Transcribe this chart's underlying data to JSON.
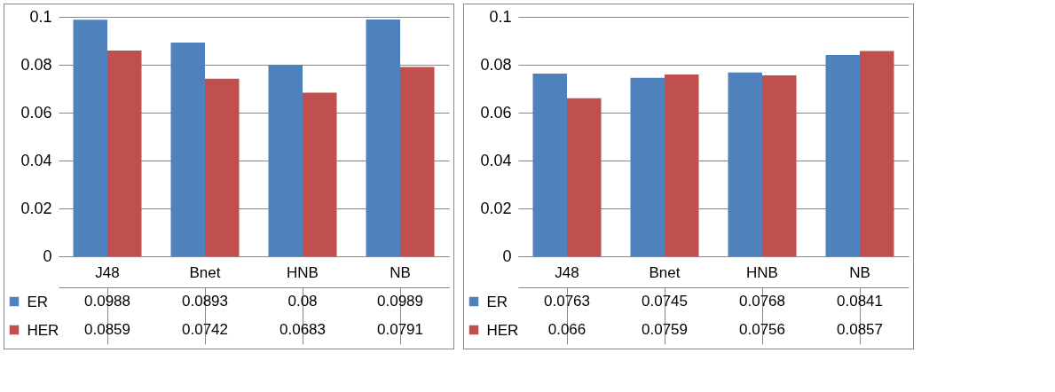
{
  "chart_data": [
    {
      "type": "bar",
      "categories": [
        "J48",
        "Bnet",
        "HNB",
        "NB"
      ],
      "series": [
        {
          "name": "ER",
          "color": "#4f81bd",
          "values": [
            0.0988,
            0.0893,
            0.08,
            0.0989
          ]
        },
        {
          "name": "HER",
          "color": "#c0504d",
          "values": [
            0.0859,
            0.0742,
            0.0683,
            0.0791
          ]
        }
      ],
      "ylim": [
        0,
        0.1
      ],
      "yticks": [
        0,
        0.02,
        0.04,
        0.06,
        0.08,
        0.1
      ],
      "grid": "y",
      "data_labels": true,
      "legend": "bottom"
    },
    {
      "type": "bar",
      "categories": [
        "J48",
        "Bnet",
        "HNB",
        "NB"
      ],
      "series": [
        {
          "name": "ER",
          "color": "#4f81bd",
          "values": [
            0.0763,
            0.0745,
            0.0768,
            0.0841
          ]
        },
        {
          "name": "HER",
          "color": "#c0504d",
          "values": [
            0.066,
            0.0759,
            0.0756,
            0.0857
          ]
        }
      ],
      "ylim": [
        0,
        0.1
      ],
      "yticks": [
        0,
        0.02,
        0.04,
        0.06,
        0.08,
        0.1
      ],
      "grid": "y",
      "data_labels": true,
      "legend": "bottom"
    }
  ]
}
